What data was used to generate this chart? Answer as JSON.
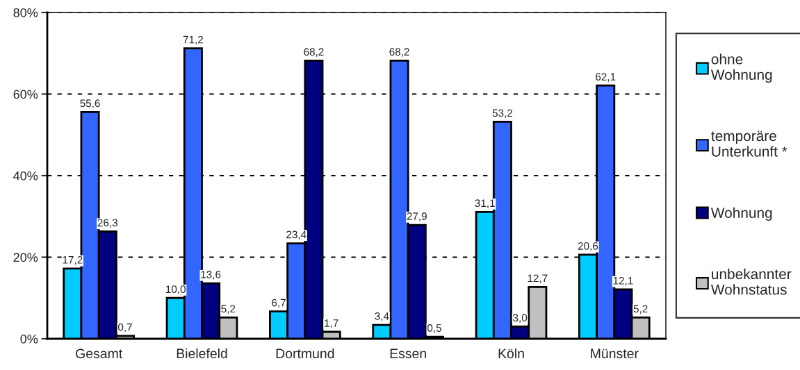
{
  "chart_data": {
    "type": "bar",
    "categories": [
      "Gesamt",
      "Bielefeld",
      "Dortmund",
      "Essen",
      "Köln",
      "Münster"
    ],
    "series": [
      {
        "name": "ohne\nWohnung",
        "color": "#00ccff",
        "values": [
          17.2,
          10.0,
          6.7,
          3.4,
          31.1,
          20.6
        ],
        "value_labels": [
          "17,2",
          "10,0",
          "6,7",
          "3,4",
          "31,1",
          "20,6"
        ]
      },
      {
        "name": "temporäre\nUnterkunft *",
        "color": "#3366ff",
        "values": [
          55.6,
          71.2,
          23.4,
          68.2,
          53.2,
          62.1
        ],
        "value_labels": [
          "55,6",
          "71,2",
          "23,4",
          "68,2",
          "53,2",
          "62,1"
        ]
      },
      {
        "name": "Wohnung",
        "color": "#000080",
        "values": [
          26.3,
          13.6,
          68.2,
          27.9,
          3.0,
          12.1
        ],
        "value_labels": [
          "26,3",
          "13,6",
          "68,2",
          "27,9",
          "3,0",
          "12,1"
        ]
      },
      {
        "name": "unbekannter\nWohnstatus",
        "color": "#c0c0c0",
        "values": [
          0.7,
          5.2,
          1.7,
          0.5,
          12.7,
          5.2
        ],
        "value_labels": [
          "0,7",
          "5,2",
          "1,7",
          "0,5",
          "12,7",
          "5,2"
        ]
      }
    ],
    "ylim": [
      0,
      80
    ],
    "yticks": [
      {
        "value": 0,
        "label": "0%"
      },
      {
        "value": 20,
        "label": "20%"
      },
      {
        "value": 40,
        "label": "40%"
      },
      {
        "value": 60,
        "label": "60%"
      },
      {
        "value": 80,
        "label": "80%"
      }
    ],
    "grid": "y",
    "line_style": "dashed",
    "legend": "right"
  }
}
